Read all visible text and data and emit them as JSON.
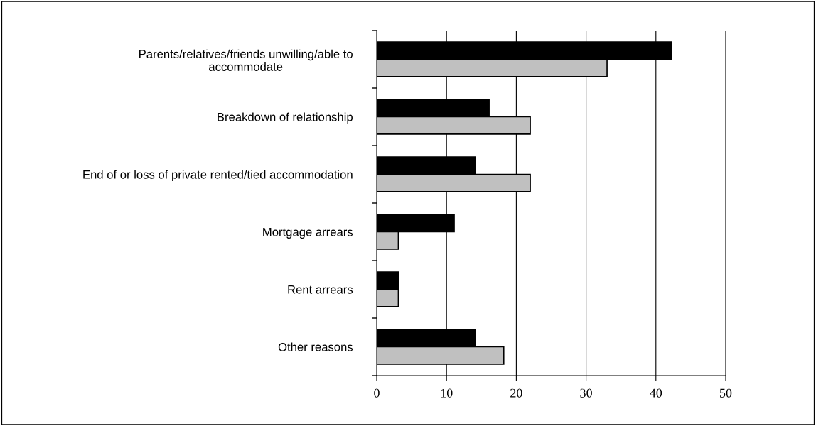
{
  "chart_data": {
    "type": "bar",
    "orientation": "horizontal",
    "categories": [
      "Parents/relatives/friends unwilling/able to\naccommodate",
      "Breakdown of relationship",
      "End of or loss of private rented/tied accommodation",
      "Mortgage arrears",
      "Rent arrears",
      "Other reasons"
    ],
    "series": [
      {
        "color": "#000000",
        "values": [
          42.2,
          16.1,
          14.1,
          11.1,
          3.1,
          14.1
        ]
      },
      {
        "color": "#c0c0c0",
        "values": [
          33.0,
          22.0,
          22.0,
          3.1,
          3.1,
          18.2
        ]
      }
    ],
    "xlim": [
      0,
      50
    ],
    "xticks": [
      0,
      10,
      20,
      30,
      40,
      50
    ],
    "grid": "x",
    "legend": false
  }
}
